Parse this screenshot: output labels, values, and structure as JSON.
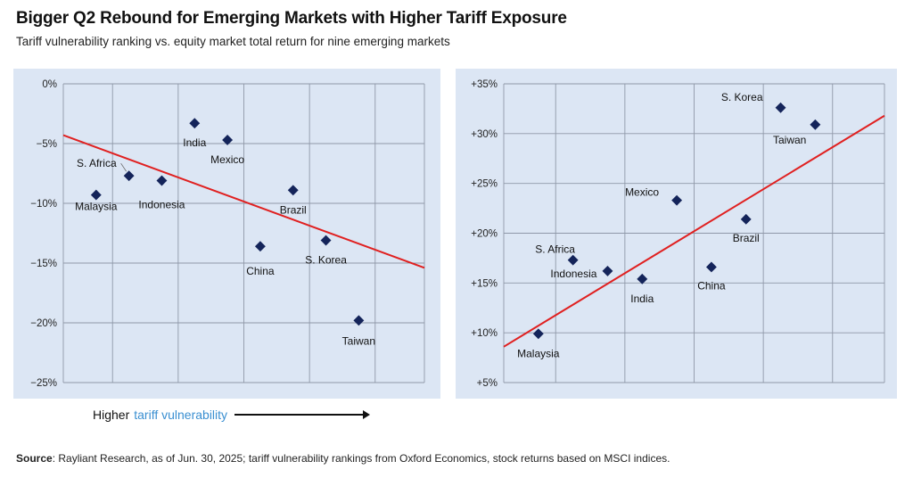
{
  "header": {
    "title": "Bigger Q2 Rebound for Emerging Markets with Higher Tariff Exposure",
    "subtitle": "Tariff vulnerability ranking vs. equity market total return for nine emerging markets"
  },
  "footer": {
    "arrow_prefix": "Higher",
    "arrow_highlight": "tariff vulnerability",
    "source_label": "Source",
    "source_text": ": Rayliant Research, as of Jun. 30, 2025; tariff vulnerability rankings from Oxford Economics, stock returns based on MSCI indices."
  },
  "colors": {
    "panel_bg": "#dce6f4",
    "marker": "#14245a",
    "trendline": "#e02020",
    "highlight": "#3a8fd1"
  },
  "chart_data": [
    {
      "type": "scatter",
      "xlabel": "",
      "ylabel": "",
      "xlim": [
        0.5,
        11.5
      ],
      "ylim": [
        -25,
        0
      ],
      "y_ticks": [
        0,
        -5,
        -10,
        -15,
        -20,
        -25
      ],
      "y_tick_labels": [
        "0%",
        "−5%",
        "−10%",
        "−15%",
        "−20%",
        "−25%"
      ],
      "x_gridlines": [
        2,
        4,
        6,
        8,
        10
      ],
      "points": [
        {
          "label": "Malaysia",
          "x": 1.5,
          "y": -9.3
        },
        {
          "label": "S. Africa",
          "x": 2.5,
          "y": -7.7
        },
        {
          "label": "Indonesia",
          "x": 3.5,
          "y": -8.1
        },
        {
          "label": "India",
          "x": 4.5,
          "y": -3.3
        },
        {
          "label": "Mexico",
          "x": 5.5,
          "y": -4.7
        },
        {
          "label": "China",
          "x": 6.5,
          "y": -13.6
        },
        {
          "label": "Brazil",
          "x": 7.5,
          "y": -8.9
        },
        {
          "label": "S. Korea",
          "x": 8.5,
          "y": -13.1
        },
        {
          "label": "Taiwan",
          "x": 9.5,
          "y": -19.8
        }
      ],
      "trendline": [
        [
          0.5,
          -4.3
        ],
        [
          11.5,
          -15.4
        ]
      ]
    },
    {
      "type": "scatter",
      "xlabel": "",
      "ylabel": "",
      "xlim": [
        0.5,
        11.5
      ],
      "ylim": [
        5,
        35
      ],
      "y_ticks": [
        35,
        30,
        25,
        20,
        15,
        10,
        5
      ],
      "y_tick_labels": [
        "+35%",
        "+30%",
        "+25%",
        "+20%",
        "+15%",
        "+10%",
        "+5%"
      ],
      "x_gridlines": [
        2,
        4,
        6,
        8,
        10
      ],
      "points": [
        {
          "label": "Malaysia",
          "x": 1.5,
          "y": 9.9
        },
        {
          "label": "S. Africa",
          "x": 2.5,
          "y": 17.3
        },
        {
          "label": "Indonesia",
          "x": 3.5,
          "y": 16.2
        },
        {
          "label": "India",
          "x": 4.5,
          "y": 15.4
        },
        {
          "label": "Mexico",
          "x": 5.5,
          "y": 23.3
        },
        {
          "label": "China",
          "x": 6.5,
          "y": 16.6
        },
        {
          "label": "Brazil",
          "x": 7.5,
          "y": 21.4
        },
        {
          "label": "S. Korea",
          "x": 8.5,
          "y": 32.6
        },
        {
          "label": "Taiwan",
          "x": 9.5,
          "y": 30.9
        }
      ],
      "trendline": [
        [
          0.5,
          8.6
        ],
        [
          11.5,
          31.8
        ]
      ]
    }
  ]
}
